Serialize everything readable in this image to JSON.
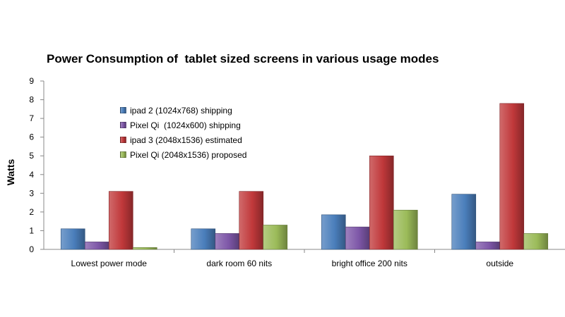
{
  "chart_data": {
    "type": "bar",
    "title": "Power Consumption of  tablet sized screens in various usage modes",
    "ylabel": "Watts",
    "xlabel": "",
    "ylim": [
      0,
      9
    ],
    "yticks": [
      0,
      1,
      2,
      3,
      4,
      5,
      6,
      7,
      8,
      9
    ],
    "grid": false,
    "legend_position": "top-left",
    "categories": [
      "Lowest power mode",
      "dark room 60 nits",
      "bright office 200 nits",
      "outside"
    ],
    "series": [
      {
        "name": "ipad 2 (1024x768) shipping",
        "color": "#4a7ebb",
        "values": [
          1.1,
          1.1,
          1.85,
          2.95
        ]
      },
      {
        "name": "Pixel Qi  (1024x600) shipping",
        "color": "#7e57a8",
        "values": [
          0.4,
          0.85,
          1.2,
          0.4
        ]
      },
      {
        "name": "ipad 3 (2048x1536) estimated",
        "color": "#c0383a",
        "values": [
          3.1,
          3.1,
          5.0,
          7.8
        ]
      },
      {
        "name": "Pixel Qi (2048x1536) proposed",
        "color": "#9bbb59",
        "values": [
          0.1,
          1.3,
          2.1,
          0.85
        ]
      }
    ]
  }
}
